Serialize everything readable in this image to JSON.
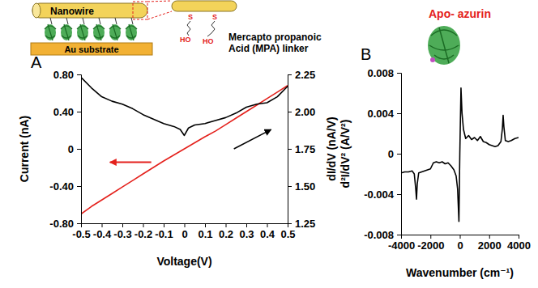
{
  "schematic": {
    "labels": {
      "nanowire": "Nanowire",
      "substrate": "Au substrate",
      "linker": "Mercapto propanoic Acid (MPA) linker",
      "atoms": [
        "S",
        "S",
        "HO",
        "HO"
      ]
    }
  },
  "chart_data": [
    {
      "panel": "A",
      "type": "line",
      "x": [
        -0.5,
        -0.45,
        -0.4,
        -0.35,
        -0.3,
        -0.25,
        -0.2,
        -0.15,
        -0.1,
        -0.05,
        -0.02,
        0,
        0.02,
        0.05,
        0.1,
        0.15,
        0.2,
        0.25,
        0.3,
        0.35,
        0.4,
        0.45,
        0.5
      ],
      "xlim": [
        -0.5,
        0.5
      ],
      "xticks": [
        -0.5,
        -0.4,
        -0.3,
        -0.2,
        -0.1,
        0,
        0.1,
        0.2,
        0.3,
        0.4,
        0.5
      ],
      "xlabel": "Voltage(V)",
      "ylabel": "Current (nA)",
      "ylim": [
        -0.8,
        0.8
      ],
      "yticks": [
        {
          "value": -0.8,
          "label": "-0.80"
        },
        {
          "value": -0.4,
          "label": "-0.40"
        },
        0,
        {
          "value": 0.4,
          "label": "0.40"
        },
        {
          "value": 0.8,
          "label": "0.80"
        }
      ],
      "y2label": "dI/dV (nA/V)",
      "y2lim": [
        1.25,
        2.25
      ],
      "y2ticks": [
        1.25,
        {
          "value": 1.5,
          "label": "1.50"
        },
        1.75,
        {
          "value": 2,
          "label": "2.00"
        },
        2.25
      ],
      "series": [
        {
          "color": "#e4211c",
          "values": [
            -0.7,
            -0.62,
            -0.55,
            -0.48,
            -0.41,
            -0.34,
            -0.27,
            -0.2,
            -0.13,
            -0.065,
            -0.026,
            0,
            0.026,
            0.065,
            0.13,
            0.19,
            0.26,
            0.33,
            0.4,
            0.47,
            0.54,
            0.61,
            0.68
          ]
        },
        {
          "color": "#000000",
          "axis": "y2",
          "values": [
            2.23,
            2.16,
            2.1,
            2.07,
            2.05,
            2.02,
            1.98,
            1.95,
            1.92,
            1.9,
            1.88,
            1.84,
            1.89,
            1.91,
            1.92,
            1.94,
            1.96,
            1.99,
            2.03,
            2.05,
            2.06,
            2.1,
            2.17
          ]
        }
      ]
    },
    {
      "panel": "B",
      "type": "line",
      "title": "Apo- azurin",
      "x": [
        -4000,
        -3750,
        -3500,
        -3250,
        -3100,
        -3000,
        -2950,
        -2900,
        -2800,
        -2600,
        -2400,
        -2200,
        -2000,
        -1800,
        -1600,
        -1400,
        -1200,
        -1000,
        -800,
        -600,
        -400,
        -250,
        -150,
        -60,
        0,
        80,
        150,
        250,
        400,
        600,
        800,
        1000,
        1200,
        1400,
        1600,
        1800,
        2000,
        2200,
        2400,
        2600,
        2800,
        2900,
        2950,
        3000,
        3100,
        3300,
        3500,
        3750,
        4000
      ],
      "xlim": [
        -4000,
        4000
      ],
      "xticks": [
        -4000,
        -2000,
        0,
        2000,
        4000
      ],
      "xlabel": "Wavenumber (cm⁻¹)",
      "ylabel": "d²I/dV² (A/V²)",
      "ylim": [
        -0.008,
        0.008
      ],
      "yticks": [
        -0.008,
        -0.004,
        0,
        0.004,
        0.008
      ],
      "series": [
        {
          "color": "#000000",
          "values": [
            -0.0019,
            -0.0018,
            -0.0018,
            -0.0017,
            -0.002,
            -0.0035,
            -0.0045,
            -0.003,
            -0.0019,
            -0.0018,
            -0.0017,
            -0.0016,
            -0.0015,
            -0.0009,
            -0.0008,
            -0.0009,
            -0.0008,
            -0.001,
            -0.0009,
            -0.0012,
            -0.0016,
            -0.0022,
            -0.0035,
            -0.0067,
            0,
            0.0065,
            0.004,
            0.0024,
            0.0015,
            0.0018,
            0.0014,
            0.0016,
            0.0013,
            0.0017,
            0.0012,
            0.0011,
            0.0009,
            0.0008,
            0.0007,
            0.0008,
            0.0012,
            0.0025,
            0.0038,
            0.0027,
            0.0013,
            0.0012,
            0.0013,
            0.0015,
            0.0016
          ]
        }
      ]
    }
  ]
}
